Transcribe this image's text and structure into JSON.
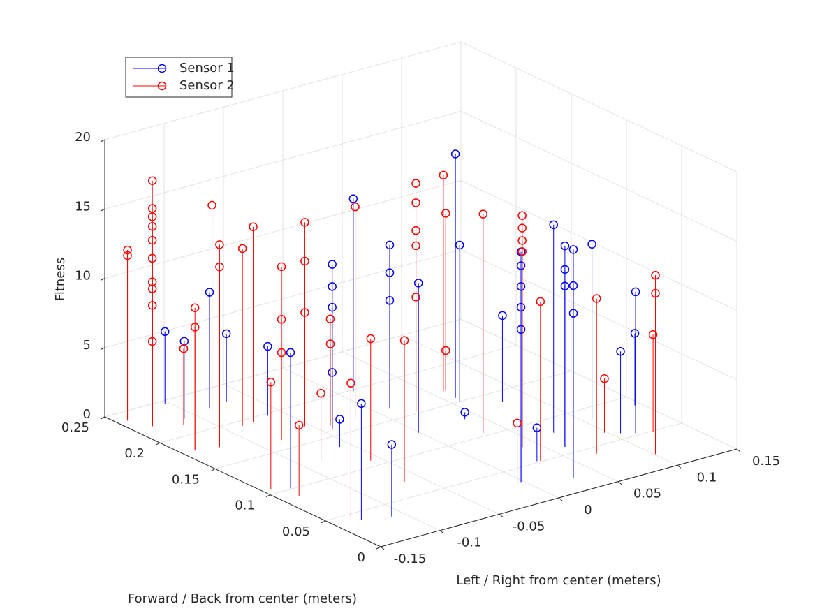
{
  "chart_data": {
    "type": "stem3",
    "xlabel": "Left / Right from center (meters)",
    "ylabel": "Forward / Back from center (meters)",
    "zlabel": "Fitness",
    "xlim": [
      -0.15,
      0.15
    ],
    "xticks": [
      -0.15,
      -0.1,
      -0.05,
      0,
      0.05,
      0.1,
      0.15
    ],
    "ylim": [
      0,
      0.25
    ],
    "yticks": [
      0,
      0.05,
      0.1,
      0.15,
      0.2,
      0.25
    ],
    "zlim": [
      0,
      20
    ],
    "zticks": [
      0,
      5,
      10,
      15,
      20
    ],
    "grid": true,
    "legend": "northwest",
    "series": [
      {
        "name": "Sensor 1",
        "color": "#0000ff",
        "x": [
          -0.103,
          -0.11,
          -0.085,
          -0.068,
          -0.062,
          -0.132,
          -0.043,
          -0.043,
          -0.043,
          -0.043,
          -0.059,
          0.011,
          -0.13,
          0.011,
          0.011,
          0.011,
          -0.11,
          -0.001,
          0.058,
          0.056,
          0.039,
          0.079,
          -0.002,
          -0.002,
          -0.002,
          -0.002,
          -0.002,
          0.03,
          0.071,
          0.061,
          0.061,
          0.061,
          0.03,
          0.03,
          0.03,
          0.107,
          0.106,
          0.114,
          0.145
        ],
        "y": [
          0.246,
          0.221,
          0.225,
          0.228,
          0.197,
          0.101,
          0.159,
          0.159,
          0.159,
          0.159,
          0.135,
          0.198,
          0.039,
          0.165,
          0.165,
          0.165,
          0.033,
          0.126,
          0.156,
          0.15,
          0.127,
          0.136,
          0.032,
          0.032,
          0.032,
          0.032,
          0.032,
          0.052,
          0.081,
          0.06,
          0.06,
          0.06,
          0.019,
          0.019,
          0.019,
          0.085,
          0.058,
          0.053,
          0.087
        ],
        "z": [
          5.2,
          5.6,
          8.4,
          4.9,
          5.0,
          9.8,
          11.9,
          10.3,
          8.8,
          4.1,
          2.0,
          13.9,
          8.4,
          11.8,
          9.8,
          7.8,
          5.2,
          10.8,
          17.6,
          11.3,
          0.5,
          6.2,
          16.6,
          15.6,
          14.1,
          12.6,
          11.0,
          2.4,
          15.0,
          14.5,
          12.8,
          11.6,
          16.5,
          13.9,
          11.9,
          12.6,
          5.9,
          10.2,
          5.2
        ]
      },
      {
        "name": "Sensor 2",
        "color": "#ff0000",
        "x": [
          -0.142,
          -0.142,
          -0.135,
          -0.135,
          -0.135,
          -0.135,
          -0.135,
          -0.135,
          -0.135,
          -0.135,
          -0.135,
          -0.135,
          -0.117,
          -0.14,
          -0.14,
          -0.095,
          -0.123,
          -0.123,
          -0.087,
          -0.077,
          -0.143,
          -0.082,
          -0.082,
          -0.082,
          -0.136,
          -0.054,
          -0.054,
          -0.054,
          -0.085,
          -0.04,
          -0.04,
          -0.136,
          -0.019,
          -0.058,
          -0.064,
          0.021,
          0.021,
          0.021,
          0.021,
          0.021,
          0.059,
          0.061,
          0.061,
          0.033,
          -0.008,
          0.038,
          0.038,
          0.038,
          0.038,
          0.032,
          0.07,
          0.098,
          0.101,
          0.101,
          0.125
        ],
        "y": [
          0.238,
          0.238,
          0.223,
          0.223,
          0.223,
          0.223,
          0.223,
          0.223,
          0.223,
          0.223,
          0.223,
          0.223,
          0.214,
          0.179,
          0.179,
          0.212,
          0.175,
          0.175,
          0.193,
          0.194,
          0.107,
          0.163,
          0.163,
          0.163,
          0.089,
          0.172,
          0.172,
          0.172,
          0.124,
          0.164,
          0.164,
          0.042,
          0.164,
          0.108,
          0.071,
          0.152,
          0.152,
          0.152,
          0.152,
          0.152,
          0.168,
          0.168,
          0.168,
          0.104,
          0.029,
          0.074,
          0.074,
          0.074,
          0.074,
          0.051,
          0.041,
          0.064,
          0.021,
          0.021,
          0.049
        ],
        "z": [
          12.3,
          11.9,
          17.7,
          15.7,
          15.1,
          14.4,
          13.4,
          12.1,
          10.4,
          9.9,
          8.7,
          6.1,
          5.5,
          10.3,
          8.9,
          15.4,
          14.6,
          13.0,
          12.8,
          14.1,
          7.7,
          12.5,
          8.7,
          6.3,
          5.1,
          14.7,
          11.9,
          8.2,
          4.9,
          7.7,
          5.9,
          9.9,
          15.3,
          8.8,
          10.2,
          16.5,
          15.1,
          13.1,
          12.0,
          8.3,
          15.6,
          12.8,
          2.9,
          15.8,
          4.5,
          16.7,
          15.8,
          14.9,
          14.1,
          11.5,
          11.2,
          3.9,
          12.9,
          11.6,
          7.0
        ]
      }
    ]
  }
}
